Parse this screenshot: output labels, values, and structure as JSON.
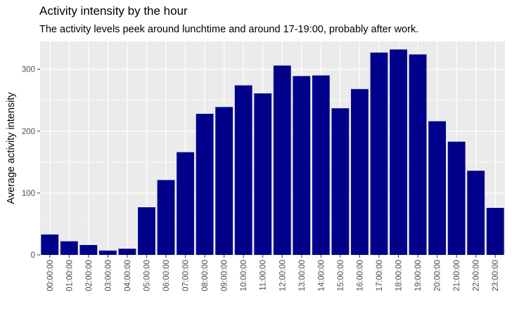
{
  "chart_data": {
    "type": "bar",
    "title": "Activity intensity by the hour",
    "subtitle": "The activity levels peek around lunchtime and around 17-19:00, probably after work.",
    "xlabel": "",
    "ylabel": "Average activity intensity",
    "categories": [
      "00:00:00",
      "01:00:00",
      "02:00:00",
      "03:00:00",
      "04:00:00",
      "05:00:00",
      "06:00:00",
      "07:00:00",
      "08:00:00",
      "09:00:00",
      "10:00:00",
      "11:00:00",
      "12:00:00",
      "13:00:00",
      "14:00:00",
      "15:00:00",
      "16:00:00",
      "17:00:00",
      "18:00:00",
      "19:00:00",
      "20:00:00",
      "21:00:00",
      "22:00:00",
      "23:00:00"
    ],
    "values": [
      33,
      22,
      16,
      7,
      10,
      77,
      121,
      166,
      228,
      239,
      274,
      261,
      306,
      289,
      290,
      237,
      268,
      327,
      332,
      324,
      216,
      183,
      136,
      76
    ],
    "ylim": [
      0,
      345
    ],
    "yticks": [
      0,
      100,
      200,
      300
    ],
    "bar_color": "#00008B",
    "panel_color": "#EBEBEB",
    "grid": true,
    "legend": "none"
  }
}
